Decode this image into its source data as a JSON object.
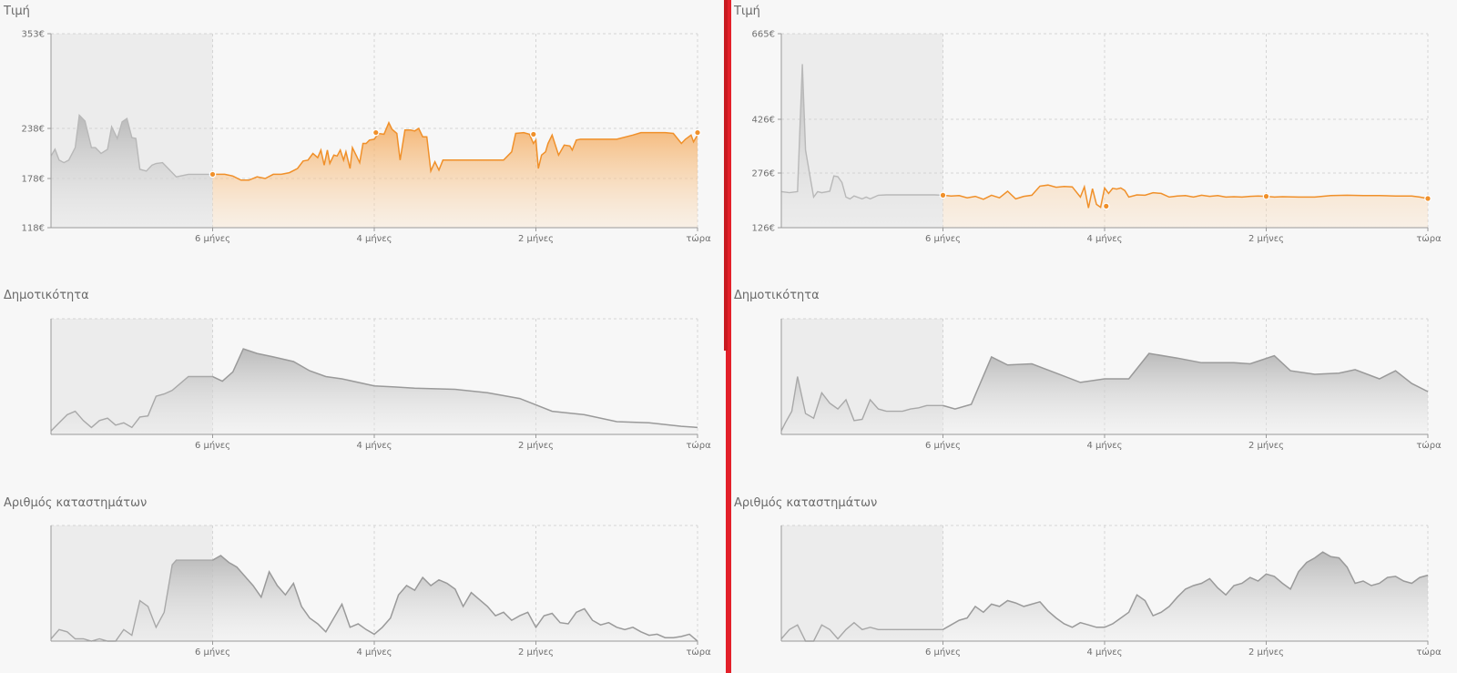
{
  "colors": {
    "accent": "#f0902a",
    "gray_line": "#9a9a9a",
    "divider": "#e3202a"
  },
  "panels": [
    {
      "price": {
        "title": "Τιμή",
        "y_labels": [
          "353€",
          "238€",
          "178€",
          "118€"
        ]
      },
      "popularity": {
        "title": "Δημοτικότητα"
      },
      "stores": {
        "title": "Αριθμός καταστημάτων"
      },
      "x_labels": [
        "6 μήνες",
        "4 μήνες",
        "2 μήνες",
        "τώρα"
      ]
    },
    {
      "price": {
        "title": "Τιμή",
        "y_labels": [
          "665€",
          "426€",
          "276€",
          "126€"
        ]
      },
      "popularity": {
        "title": "Δημοτικότητα"
      },
      "stores": {
        "title": "Αριθμός καταστημάτων"
      },
      "x_labels": [
        "6 μήνες",
        "4 μήνες",
        "2 μήνες",
        "τώρα"
      ]
    }
  ],
  "chart_data": [
    {
      "type": "area",
      "title": "Τιμή",
      "x_unit": "months ago",
      "xlim": [
        8,
        0
      ],
      "ylim": [
        118,
        353
      ],
      "yticks": [
        118,
        178,
        238,
        353
      ],
      "highlight_from": 6,
      "x": [
        8,
        7.95,
        7.9,
        7.84,
        7.78,
        7.7,
        7.65,
        7.58,
        7.5,
        7.45,
        7.38,
        7.3,
        7.25,
        7.18,
        7.12,
        7.06,
        7.0,
        6.95,
        6.9,
        6.82,
        6.75,
        6.7,
        6.62,
        6.55,
        6.45,
        6.3,
        6.15,
        6.0,
        5.85,
        5.75,
        5.65,
        5.55,
        5.45,
        5.35,
        5.25,
        5.15,
        5.05,
        4.95,
        4.88,
        4.82,
        4.76,
        4.7,
        4.66,
        4.62,
        4.58,
        4.55,
        4.5,
        4.46,
        4.42,
        4.38,
        4.35,
        4.3,
        4.27,
        4.22,
        4.18,
        4.14,
        4.1,
        4.06,
        4.0,
        3.95,
        3.88,
        3.82,
        3.78,
        3.72,
        3.68,
        3.62,
        3.55,
        3.5,
        3.45,
        3.4,
        3.35,
        3.3,
        3.25,
        3.2,
        3.15,
        3.1,
        3.05,
        3.0,
        2.9,
        2.8,
        2.7,
        2.6,
        2.5,
        2.4,
        2.3,
        2.25,
        2.15,
        2.08,
        2.03,
        2.0,
        1.97,
        1.93,
        1.88,
        1.85,
        1.8,
        1.72,
        1.65,
        1.58,
        1.55,
        1.5,
        1.45,
        1.4,
        1.3,
        1.2,
        1.1,
        1.0,
        0.8,
        0.7,
        0.6,
        0.5,
        0.4,
        0.3,
        0.2,
        0.15,
        0.08,
        0.05,
        0.0
      ],
      "y": [
        205,
        213,
        200,
        197,
        200,
        215,
        254,
        247,
        215,
        215,
        208,
        213,
        240,
        226,
        246,
        250,
        227,
        226,
        189,
        187,
        194,
        196,
        197,
        190,
        180,
        183,
        183,
        183,
        183,
        181,
        176,
        176,
        180,
        178,
        183,
        183,
        185,
        190,
        199,
        200,
        208,
        203,
        212,
        194,
        212,
        196,
        206,
        205,
        212,
        200,
        210,
        190,
        215,
        205,
        197,
        220,
        220,
        224,
        225,
        232,
        231,
        245,
        237,
        232,
        200,
        236,
        236,
        235,
        238,
        228,
        228,
        187,
        198,
        188,
        200,
        200,
        200,
        200,
        200,
        200,
        200,
        200,
        200,
        200,
        210,
        232,
        233,
        231,
        220,
        224,
        190,
        206,
        210,
        220,
        230,
        206,
        218,
        217,
        212,
        224,
        225,
        225,
        225,
        225,
        225,
        225,
        230,
        233,
        233,
        233,
        233,
        232,
        220,
        225,
        230,
        222,
        230
      ],
      "markers": [
        {
          "x": 6.0,
          "y": 183
        },
        {
          "x": 3.98,
          "y": 233
        },
        {
          "x": 2.03,
          "y": 231
        },
        {
          "x": 0.0,
          "y": 233
        }
      ]
    },
    {
      "type": "area",
      "title": "Δημοτικότητα",
      "x_unit": "months ago",
      "xlim": [
        8,
        0
      ],
      "ylim": [
        0,
        1
      ],
      "highlight_from": 6,
      "x": [
        8,
        7.9,
        7.8,
        7.7,
        7.6,
        7.5,
        7.4,
        7.3,
        7.2,
        7.1,
        7.0,
        6.9,
        6.8,
        6.7,
        6.6,
        6.5,
        6.3,
        6.2,
        6.0,
        5.88,
        5.75,
        5.62,
        5.45,
        5.25,
        5.0,
        4.8,
        4.6,
        4.4,
        4.0,
        3.75,
        3.5,
        3.0,
        2.6,
        2.2,
        1.8,
        1.4,
        1.0,
        0.6,
        0.2,
        0.0
      ],
      "y": [
        0.03,
        0.1,
        0.17,
        0.2,
        0.12,
        0.06,
        0.12,
        0.14,
        0.08,
        0.1,
        0.06,
        0.15,
        0.16,
        0.33,
        0.35,
        0.38,
        0.5,
        0.5,
        0.5,
        0.46,
        0.54,
        0.74,
        0.7,
        0.67,
        0.63,
        0.55,
        0.5,
        0.48,
        0.42,
        0.41,
        0.4,
        0.39,
        0.36,
        0.31,
        0.2,
        0.17,
        0.11,
        0.1,
        0.07,
        0.06
      ]
    },
    {
      "type": "area",
      "title": "Αριθμός καταστημάτων",
      "x_unit": "months ago",
      "xlim": [
        8,
        0
      ],
      "ylim": [
        0,
        1
      ],
      "highlight_from": 6,
      "x": [
        8,
        7.9,
        7.8,
        7.7,
        7.6,
        7.5,
        7.4,
        7.3,
        7.2,
        7.1,
        7.0,
        6.9,
        6.8,
        6.7,
        6.6,
        6.5,
        6.45,
        6.4,
        6.3,
        6.2,
        6.0,
        5.9,
        5.8,
        5.7,
        5.6,
        5.5,
        5.4,
        5.3,
        5.2,
        5.1,
        5.0,
        4.9,
        4.8,
        4.7,
        4.6,
        4.5,
        4.4,
        4.3,
        4.2,
        4.1,
        4.0,
        3.9,
        3.8,
        3.7,
        3.6,
        3.5,
        3.4,
        3.3,
        3.2,
        3.1,
        3.0,
        2.9,
        2.8,
        2.7,
        2.6,
        2.5,
        2.4,
        2.3,
        2.2,
        2.1,
        2.0,
        1.9,
        1.8,
        1.7,
        1.6,
        1.5,
        1.4,
        1.3,
        1.2,
        1.1,
        1.0,
        0.9,
        0.8,
        0.7,
        0.6,
        0.5,
        0.4,
        0.3,
        0.2,
        0.1,
        0.0
      ],
      "y": [
        0.02,
        0.1,
        0.08,
        0.02,
        0.02,
        0.0,
        0.02,
        0.0,
        0.0,
        0.1,
        0.05,
        0.35,
        0.3,
        0.12,
        0.25,
        0.66,
        0.7,
        0.7,
        0.7,
        0.7,
        0.7,
        0.74,
        0.68,
        0.64,
        0.56,
        0.48,
        0.38,
        0.6,
        0.48,
        0.4,
        0.5,
        0.3,
        0.2,
        0.15,
        0.08,
        0.2,
        0.32,
        0.12,
        0.15,
        0.1,
        0.06,
        0.12,
        0.2,
        0.4,
        0.48,
        0.44,
        0.55,
        0.48,
        0.53,
        0.5,
        0.45,
        0.3,
        0.42,
        0.36,
        0.3,
        0.22,
        0.25,
        0.18,
        0.22,
        0.25,
        0.12,
        0.22,
        0.24,
        0.16,
        0.15,
        0.25,
        0.28,
        0.18,
        0.14,
        0.16,
        0.12,
        0.1,
        0.12,
        0.08,
        0.05,
        0.06,
        0.03,
        0.03,
        0.04,
        0.06,
        0.0
      ]
    },
    {
      "type": "area",
      "title": "Τιμή",
      "x_unit": "months ago",
      "xlim": [
        8,
        0
      ],
      "ylim": [
        126,
        665
      ],
      "yticks": [
        126,
        276,
        426,
        665
      ],
      "highlight_from": 6,
      "x": [
        8,
        7.9,
        7.8,
        7.74,
        7.7,
        7.64,
        7.6,
        7.55,
        7.5,
        7.4,
        7.35,
        7.3,
        7.25,
        7.2,
        7.15,
        7.1,
        7.0,
        6.95,
        6.9,
        6.85,
        6.8,
        6.7,
        6.6,
        6.5,
        6.4,
        6.3,
        6.2,
        6.1,
        6.0,
        5.9,
        5.8,
        5.7,
        5.6,
        5.5,
        5.4,
        5.3,
        5.2,
        5.1,
        5.0,
        4.9,
        4.8,
        4.7,
        4.6,
        4.5,
        4.4,
        4.3,
        4.25,
        4.2,
        4.15,
        4.1,
        4.05,
        4.0,
        3.95,
        3.9,
        3.85,
        3.8,
        3.75,
        3.7,
        3.6,
        3.5,
        3.4,
        3.3,
        3.2,
        3.1,
        3.0,
        2.9,
        2.8,
        2.7,
        2.6,
        2.5,
        2.4,
        2.3,
        2.2,
        2.1,
        2.0,
        1.9,
        1.8,
        1.6,
        1.4,
        1.2,
        1.0,
        0.8,
        0.6,
        0.4,
        0.2,
        0.1,
        0.0
      ],
      "y": [
        225,
        222,
        225,
        580,
        340,
        260,
        210,
        225,
        222,
        226,
        268,
        266,
        250,
        210,
        205,
        213,
        205,
        210,
        205,
        210,
        215,
        216,
        216,
        216,
        216,
        216,
        216,
        216,
        215,
        213,
        214,
        208,
        212,
        204,
        215,
        208,
        226,
        205,
        212,
        215,
        240,
        243,
        237,
        239,
        238,
        210,
        238,
        180,
        233,
        190,
        182,
        235,
        220,
        234,
        232,
        235,
        228,
        210,
        216,
        215,
        222,
        220,
        210,
        213,
        214,
        210,
        215,
        212,
        214,
        210,
        211,
        210,
        212,
        213,
        212,
        210,
        211,
        210,
        210,
        214,
        215,
        214,
        214,
        213,
        213,
        210,
        206
      ],
      "markers": [
        {
          "x": 6.0,
          "y": 215
        },
        {
          "x": 3.98,
          "y": 185
        },
        {
          "x": 2.0,
          "y": 212
        },
        {
          "x": 0.0,
          "y": 206
        }
      ]
    },
    {
      "type": "area",
      "title": "Δημοτικότητα",
      "x_unit": "months ago",
      "xlim": [
        8,
        0
      ],
      "ylim": [
        0,
        1
      ],
      "highlight_from": 6,
      "x": [
        8,
        7.95,
        7.87,
        7.8,
        7.7,
        7.6,
        7.5,
        7.4,
        7.3,
        7.2,
        7.1,
        7.0,
        6.9,
        6.8,
        6.7,
        6.6,
        6.5,
        6.4,
        6.3,
        6.2,
        6.0,
        5.85,
        5.65,
        5.4,
        5.2,
        4.9,
        4.6,
        4.3,
        4.0,
        3.7,
        3.45,
        3.1,
        2.8,
        2.4,
        2.2,
        1.9,
        1.7,
        1.4,
        1.1,
        0.9,
        0.6,
        0.4,
        0.2,
        0.0
      ],
      "y": [
        0.03,
        0.1,
        0.2,
        0.5,
        0.18,
        0.14,
        0.36,
        0.27,
        0.22,
        0.3,
        0.12,
        0.13,
        0.3,
        0.22,
        0.2,
        0.2,
        0.2,
        0.22,
        0.23,
        0.25,
        0.25,
        0.22,
        0.26,
        0.67,
        0.6,
        0.61,
        0.53,
        0.45,
        0.48,
        0.48,
        0.7,
        0.66,
        0.62,
        0.62,
        0.61,
        0.68,
        0.55,
        0.52,
        0.53,
        0.56,
        0.48,
        0.55,
        0.44,
        0.37
      ]
    },
    {
      "type": "area",
      "title": "Αριθμός καταστημάτων",
      "x_unit": "months ago",
      "xlim": [
        8,
        0
      ],
      "ylim": [
        0,
        1
      ],
      "highlight_from": 6,
      "x": [
        8,
        7.9,
        7.8,
        7.7,
        7.6,
        7.5,
        7.4,
        7.3,
        7.2,
        7.1,
        7.0,
        6.9,
        6.8,
        6.6,
        6.4,
        6.2,
        6.0,
        5.9,
        5.8,
        5.7,
        5.6,
        5.5,
        5.4,
        5.3,
        5.2,
        5.1,
        5.0,
        4.9,
        4.8,
        4.7,
        4.6,
        4.5,
        4.4,
        4.3,
        4.2,
        4.1,
        4.0,
        3.9,
        3.8,
        3.7,
        3.6,
        3.5,
        3.4,
        3.3,
        3.2,
        3.1,
        3.0,
        2.9,
        2.8,
        2.7,
        2.6,
        2.5,
        2.4,
        2.3,
        2.2,
        2.1,
        2.0,
        1.9,
        1.8,
        1.7,
        1.6,
        1.5,
        1.4,
        1.3,
        1.2,
        1.1,
        1.0,
        0.9,
        0.8,
        0.7,
        0.6,
        0.5,
        0.4,
        0.3,
        0.2,
        0.1,
        0.0
      ],
      "y": [
        0.02,
        0.1,
        0.14,
        0.0,
        0.0,
        0.14,
        0.1,
        0.02,
        0.1,
        0.16,
        0.1,
        0.12,
        0.1,
        0.1,
        0.1,
        0.1,
        0.1,
        0.14,
        0.18,
        0.2,
        0.3,
        0.25,
        0.32,
        0.3,
        0.35,
        0.33,
        0.3,
        0.32,
        0.34,
        0.26,
        0.2,
        0.15,
        0.12,
        0.16,
        0.14,
        0.12,
        0.12,
        0.15,
        0.2,
        0.25,
        0.4,
        0.35,
        0.22,
        0.25,
        0.3,
        0.38,
        0.45,
        0.48,
        0.5,
        0.54,
        0.46,
        0.4,
        0.48,
        0.5,
        0.55,
        0.52,
        0.58,
        0.56,
        0.5,
        0.45,
        0.6,
        0.68,
        0.72,
        0.77,
        0.73,
        0.72,
        0.64,
        0.5,
        0.52,
        0.48,
        0.5,
        0.55,
        0.56,
        0.52,
        0.5,
        0.55,
        0.57
      ]
    }
  ]
}
